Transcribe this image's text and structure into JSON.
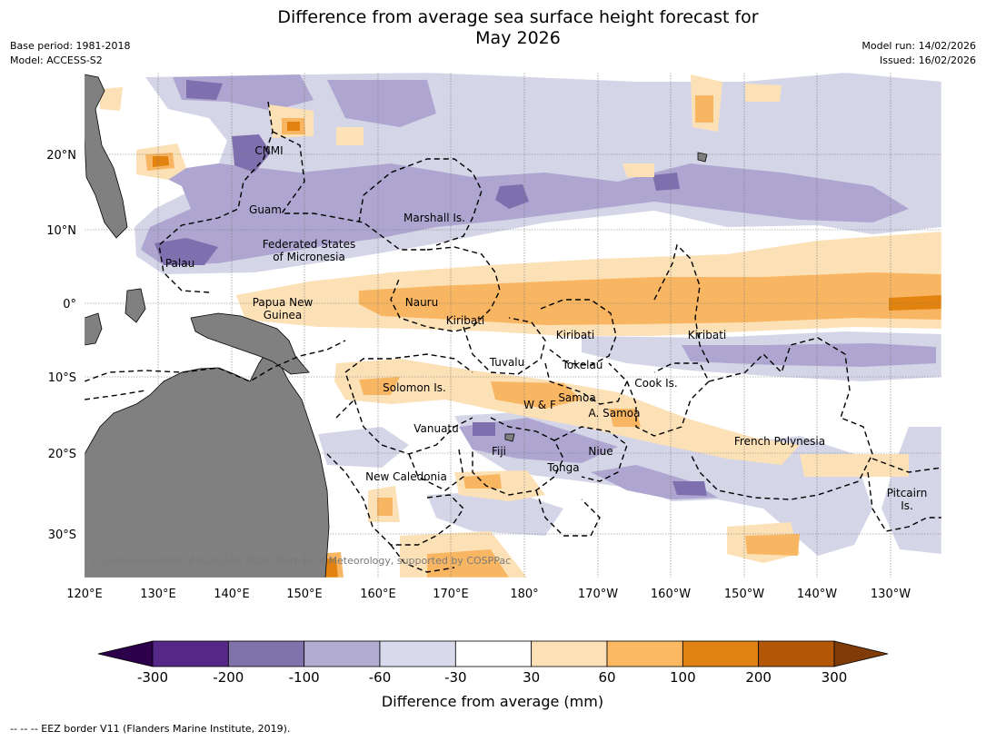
{
  "title": {
    "line1": "Difference from average sea surface height forecast for",
    "line2": "May 2026"
  },
  "meta_left": {
    "base_period": "Base period: 1981-2018",
    "model": "Model: ACCESS-S2"
  },
  "meta_right": {
    "model_run": "Model run: 14/02/2026",
    "issued": "Issued: 16/02/2026"
  },
  "map": {
    "lon_ticks": [
      "120°E",
      "130°E",
      "140°E",
      "150°E",
      "160°E",
      "170°E",
      "180°",
      "170°W",
      "160°W",
      "150°W",
      "140°W",
      "130°W"
    ],
    "lat_ticks": [
      "20°N",
      "10°N",
      "0°",
      "10°S",
      "20°S",
      "30°S"
    ],
    "places": [
      {
        "lines": [
          "CNMI"
        ]
      },
      {
        "lines": [
          "Guam"
        ]
      },
      {
        "lines": [
          "Marshall Is."
        ]
      },
      {
        "lines": [
          "Federated States",
          "of Micronesia"
        ]
      },
      {
        "lines": [
          "Palau"
        ]
      },
      {
        "lines": [
          "Papua New",
          "Guinea"
        ]
      },
      {
        "lines": [
          "Nauru"
        ]
      },
      {
        "lines": [
          "Kiribati"
        ]
      },
      {
        "lines": [
          "Kiribati"
        ]
      },
      {
        "lines": [
          "Kiribati"
        ]
      },
      {
        "lines": [
          "Tuvalu"
        ]
      },
      {
        "lines": [
          "Tokelau"
        ]
      },
      {
        "lines": [
          "Cook Is."
        ]
      },
      {
        "lines": [
          "Solomon Is."
        ]
      },
      {
        "lines": [
          "W & F"
        ]
      },
      {
        "lines": [
          "Samoa"
        ]
      },
      {
        "lines": [
          "A. Samoa"
        ]
      },
      {
        "lines": [
          "Vanuatu"
        ]
      },
      {
        "lines": [
          "Fiji"
        ]
      },
      {
        "lines": [
          "Niue"
        ]
      },
      {
        "lines": [
          "Tonga"
        ]
      },
      {
        "lines": [
          "French Polynesia"
        ]
      },
      {
        "lines": [
          "New Caledonia"
        ]
      },
      {
        "lines": [
          "Pitcairn",
          "Is."
        ]
      }
    ],
    "copyright": "© Commonwealth of Australia 2026, Bureau of Meteorology, supported by COSPPac",
    "colors": {
      "land": "#808080",
      "neg_light": "#d5d5e8",
      "neg_mid": "#aea6d0",
      "neg_dark": "#7e6fae",
      "pos_light": "#fde1b6",
      "pos_mid": "#f9b662",
      "pos_dark": "#e3830f",
      "pos_darker": "#b35806"
    }
  },
  "colorbar": {
    "ticks": [
      "-300",
      "-200",
      "-100",
      "-60",
      "-30",
      "30",
      "60",
      "100",
      "200",
      "300"
    ],
    "colors": [
      "#2d004b",
      "#542788",
      "#8073ac",
      "#b2abd2",
      "#d8daeb",
      "#ffffff",
      "#fee0b6",
      "#fdb863",
      "#e08214",
      "#b35806",
      "#7f3b08"
    ],
    "label": "Difference from average (mm)"
  },
  "footnote": "--  --  -- EEZ border V11 (Flanders Marine Institute, 2019)."
}
